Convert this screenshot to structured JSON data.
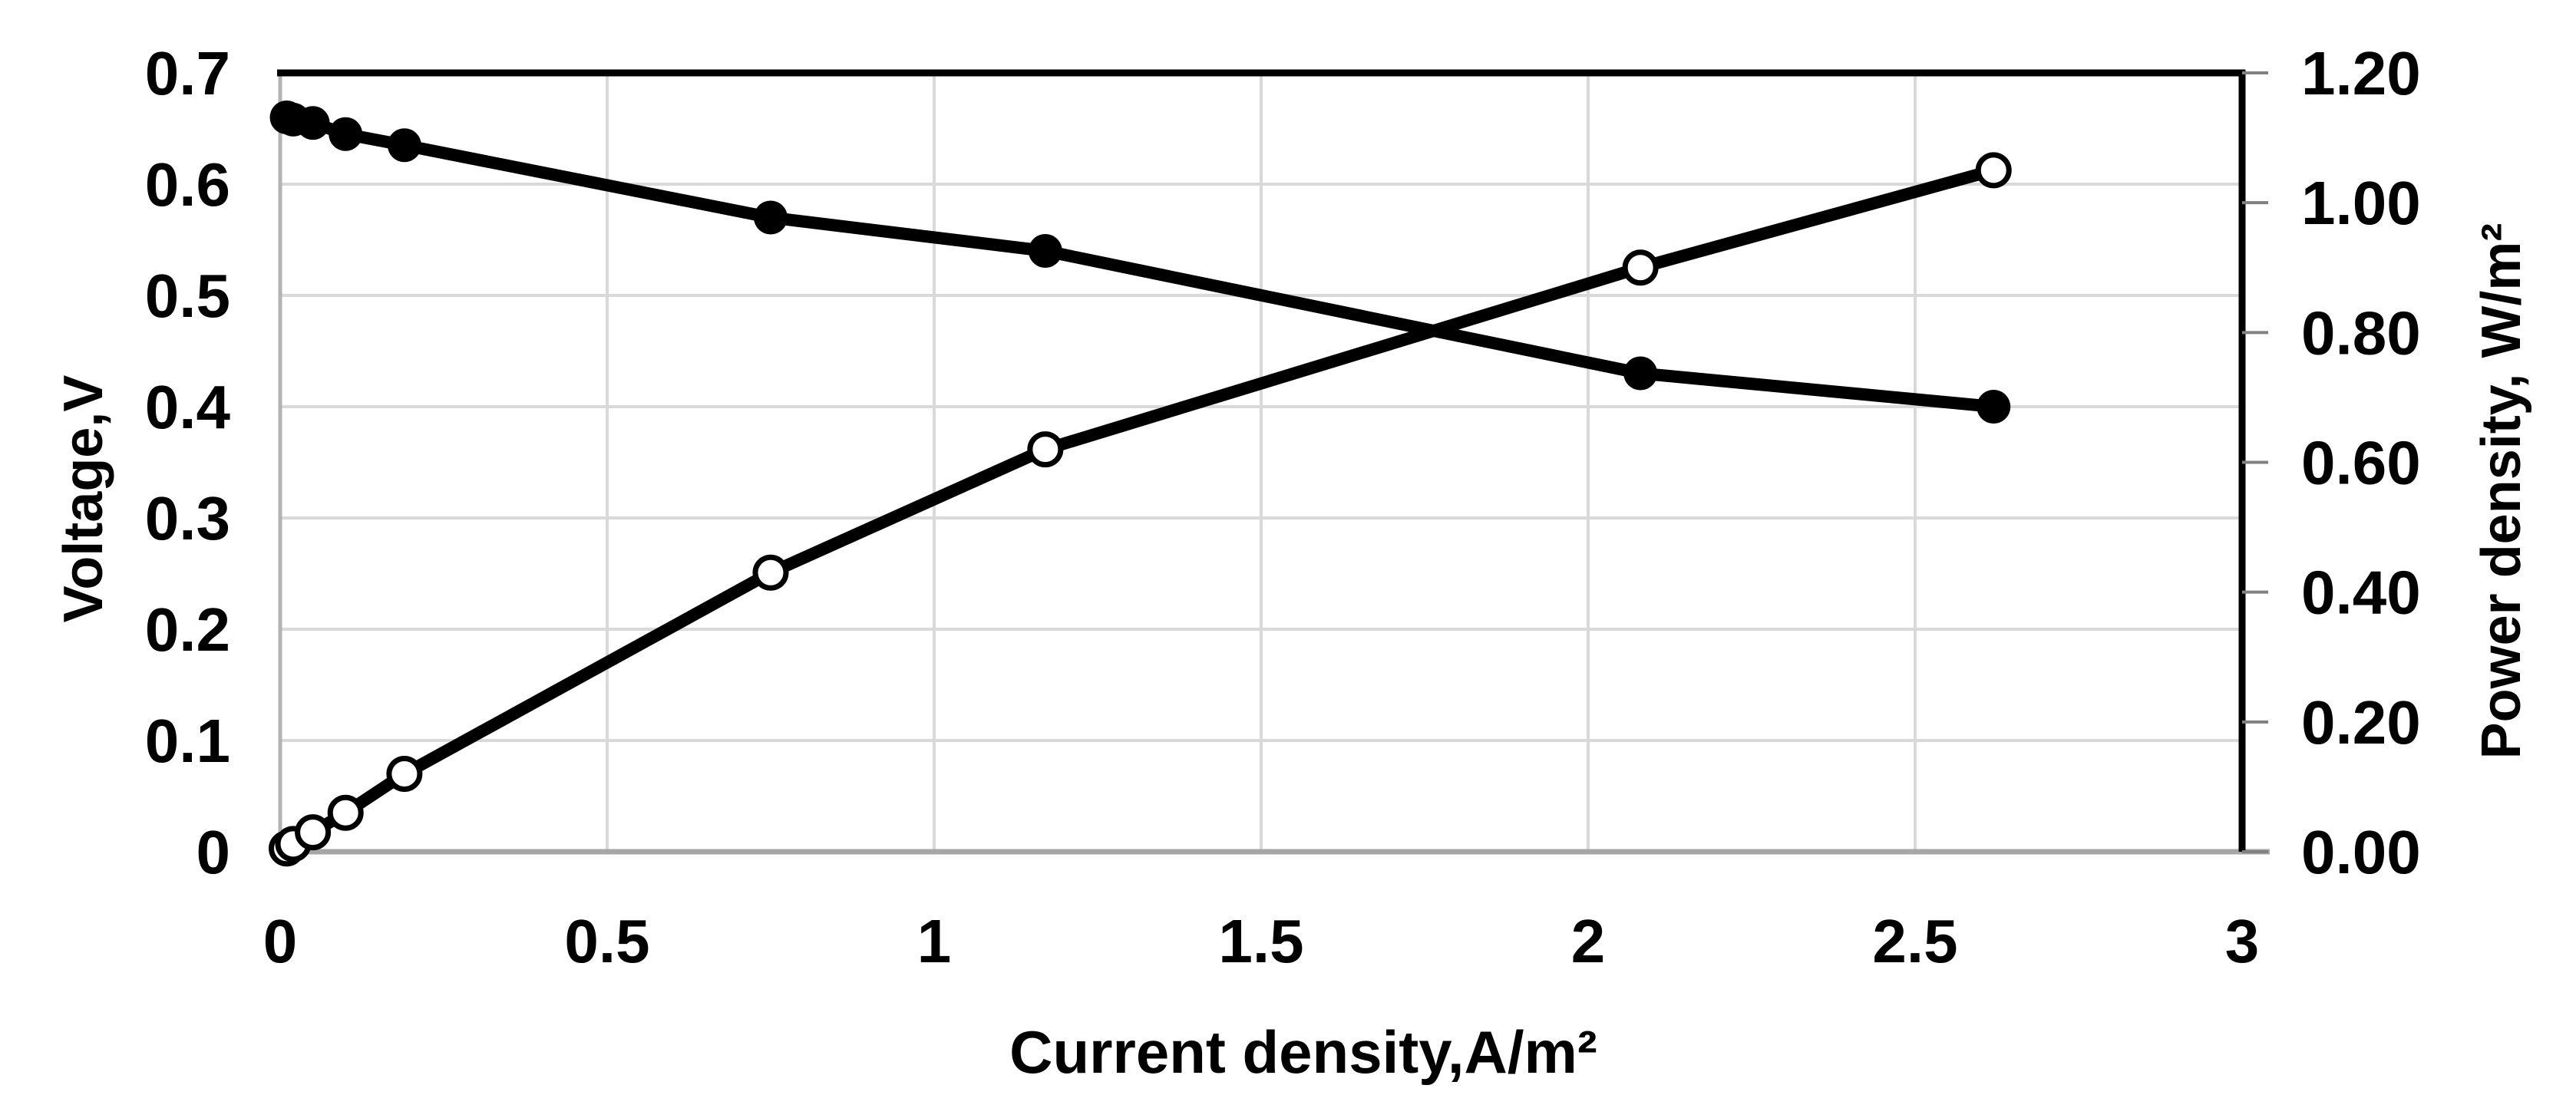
{
  "chart_data": {
    "type": "line",
    "title": "",
    "x": [
      0.01,
      0.02,
      0.05,
      0.1,
      0.19,
      0.75,
      1.17,
      2.08,
      2.62
    ],
    "series": [
      {
        "name": "Voltage",
        "axis": "left",
        "marker": "filled-circle",
        "color": "#000000",
        "values": [
          0.66,
          0.658,
          0.655,
          0.645,
          0.635,
          0.57,
          0.54,
          0.43,
          0.4
        ]
      },
      {
        "name": "Power density",
        "axis": "right",
        "marker": "open-circle",
        "color": "#000000",
        "values": [
          0.005,
          0.012,
          0.03,
          0.06,
          0.12,
          0.43,
          0.62,
          0.9,
          1.05
        ]
      }
    ],
    "x_axis": {
      "label": "Current density,A/m²",
      "min": 0,
      "max": 3,
      "tick_step": 0.5,
      "tick_labels": [
        "0",
        "0.5",
        "1",
        "1.5",
        "2",
        "2.5",
        "3"
      ]
    },
    "left_axis": {
      "label": "Voltage,V",
      "min": 0,
      "max": 0.7,
      "tick_step": 0.1,
      "tick_labels": [
        "0.7",
        "0.6",
        "0.5",
        "0.4",
        "0.3",
        "0.2",
        "0.1",
        "0"
      ]
    },
    "right_axis": {
      "label": "Power density, W/m²",
      "min": 0,
      "max": 1.2,
      "tick_step": 0.2,
      "tick_labels": [
        "1.20",
        "1.00",
        "0.80",
        "0.60",
        "0.40",
        "0.20",
        "0.00"
      ]
    },
    "grid": {
      "horizontal": true,
      "vertical": true,
      "color": "#d9d9d9"
    },
    "legend": "none",
    "colors": {
      "series": "#000000",
      "grid": "#d9d9d9",
      "axis_gray": "#a6a6a6",
      "axis_light_gray": "#b3b3b3",
      "tick_gray": "#808080",
      "axis_black": "#000000",
      "background": "#ffffff"
    }
  }
}
